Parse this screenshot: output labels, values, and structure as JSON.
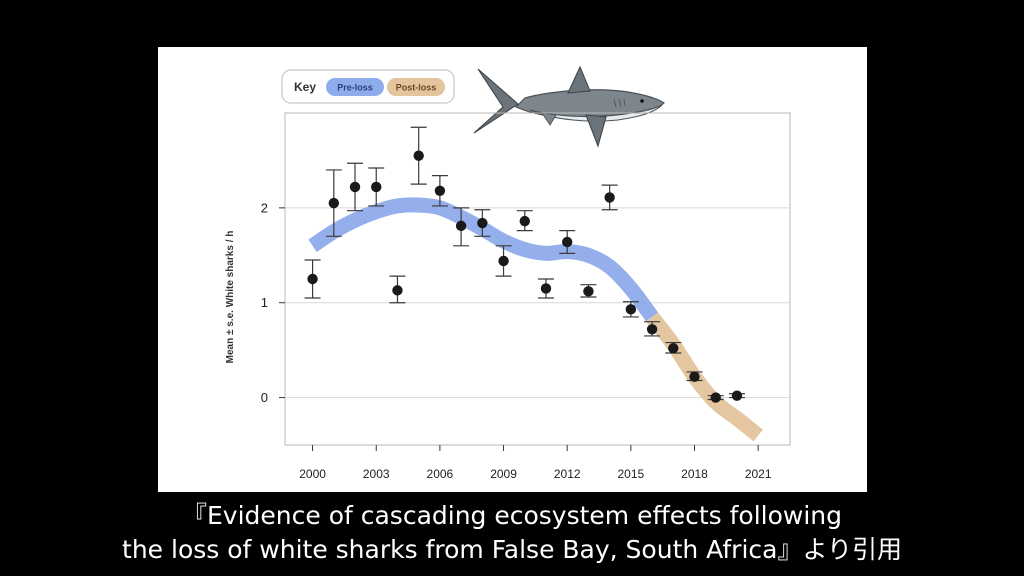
{
  "caption": {
    "line1": "『Evidence of cascading ecosystem effects following",
    "line2": "the loss of white sharks from False Bay, South Africa』より引用"
  },
  "key": {
    "title": "Key",
    "pre_loss": "Pre-loss",
    "post_loss": "Post-loss"
  },
  "colors": {
    "pre_loss_band": "#8eabeb",
    "post_loss_band": "#e3c49c",
    "points": "#1a1a1a",
    "grid": "#d8d8d8",
    "frame": "#b8b8b8"
  },
  "icons": {
    "shark": "white-shark-illustration"
  },
  "chart_data": {
    "type": "scatter",
    "title": "",
    "xlabel": "",
    "ylabel": "Mean ± s.e. White sharks / h",
    "xlim": [
      1998.7,
      2022.5
    ],
    "ylim": [
      -0.5,
      3.0
    ],
    "xticks": [
      2000,
      2003,
      2006,
      2009,
      2012,
      2015,
      2018,
      2021
    ],
    "yticks": [
      0,
      1,
      2
    ],
    "grid": "horizontal",
    "legend": "top-left",
    "series": [
      {
        "name": "",
        "kind": "points-with-error-bars",
        "points": [
          {
            "x": 2000,
            "y": 1.25,
            "lo": 1.05,
            "hi": 1.45
          },
          {
            "x": 2001,
            "y": 2.05,
            "lo": 1.7,
            "hi": 2.4
          },
          {
            "x": 2002,
            "y": 2.22,
            "lo": 1.97,
            "hi": 2.47
          },
          {
            "x": 2003,
            "y": 2.22,
            "lo": 2.02,
            "hi": 2.42
          },
          {
            "x": 2004,
            "y": 1.13,
            "lo": 1.0,
            "hi": 1.28
          },
          {
            "x": 2005,
            "y": 2.55,
            "lo": 2.25,
            "hi": 2.85
          },
          {
            "x": 2006,
            "y": 2.18,
            "lo": 2.02,
            "hi": 2.34
          },
          {
            "x": 2007,
            "y": 1.81,
            "lo": 1.6,
            "hi": 2.0
          },
          {
            "x": 2008,
            "y": 1.84,
            "lo": 1.7,
            "hi": 1.98
          },
          {
            "x": 2009,
            "y": 1.44,
            "lo": 1.28,
            "hi": 1.6
          },
          {
            "x": 2010,
            "y": 1.86,
            "lo": 1.76,
            "hi": 1.97
          },
          {
            "x": 2011,
            "y": 1.15,
            "lo": 1.05,
            "hi": 1.25
          },
          {
            "x": 2012,
            "y": 1.64,
            "lo": 1.52,
            "hi": 1.76
          },
          {
            "x": 2013,
            "y": 1.12,
            "lo": 1.06,
            "hi": 1.19
          },
          {
            "x": 2014,
            "y": 2.11,
            "lo": 1.98,
            "hi": 2.24
          },
          {
            "x": 2015,
            "y": 0.93,
            "lo": 0.85,
            "hi": 1.01
          },
          {
            "x": 2016,
            "y": 0.72,
            "lo": 0.65,
            "hi": 0.8
          },
          {
            "x": 2017,
            "y": 0.52,
            "lo": 0.47,
            "hi": 0.58
          },
          {
            "x": 2018,
            "y": 0.22,
            "lo": 0.18,
            "hi": 0.27
          },
          {
            "x": 2019,
            "y": 0.0,
            "lo": -0.02,
            "hi": 0.02
          },
          {
            "x": 2020,
            "y": 0.02,
            "lo": 0.0,
            "hi": 0.04
          }
        ]
      },
      {
        "name": "Pre-loss",
        "kind": "smooth-band",
        "x": [
          2000,
          2001,
          2002,
          2003,
          2004,
          2005,
          2006,
          2007,
          2008,
          2009,
          2010,
          2011,
          2012,
          2013,
          2014,
          2015,
          2016
        ],
        "y": [
          1.6,
          1.75,
          1.87,
          1.96,
          2.02,
          2.03,
          2.0,
          1.9,
          1.78,
          1.65,
          1.56,
          1.52,
          1.54,
          1.5,
          1.38,
          1.15,
          0.85
        ]
      },
      {
        "name": "Post-loss",
        "kind": "smooth-band",
        "x": [
          2016,
          2017,
          2018,
          2019,
          2020,
          2021
        ],
        "y": [
          0.85,
          0.56,
          0.22,
          -0.05,
          -0.22,
          -0.4
        ]
      }
    ]
  }
}
